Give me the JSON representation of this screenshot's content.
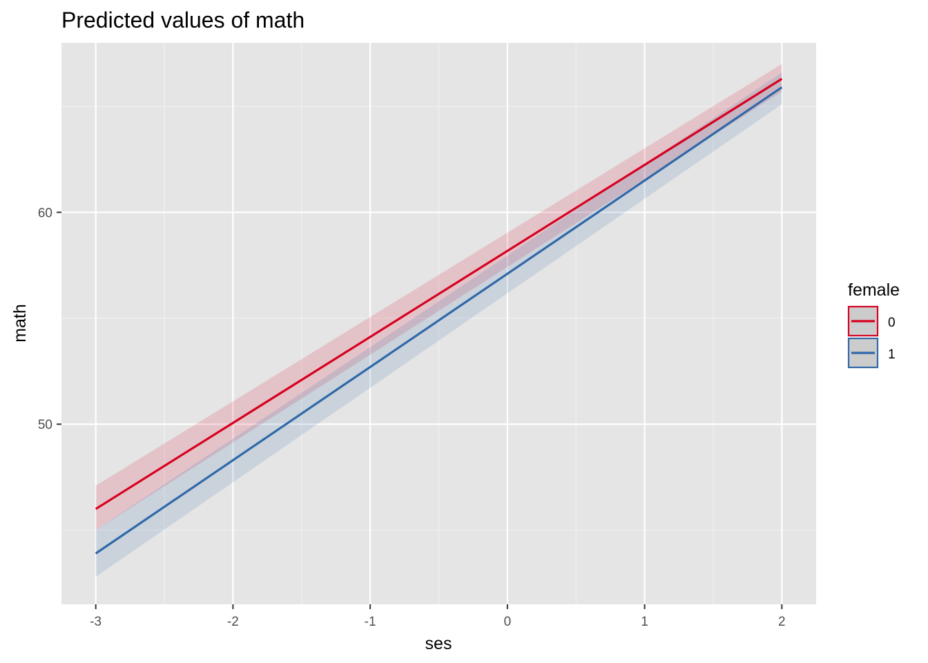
{
  "chart_data": {
    "type": "line",
    "title": "Predicted values of math",
    "xlabel": "ses",
    "ylabel": "math",
    "xlim": [
      -3.25,
      2.25
    ],
    "ylim": [
      41.5,
      68.0
    ],
    "x_ticks": [
      -3,
      -2,
      -1,
      0,
      1,
      2
    ],
    "x_tick_labels": [
      "-3",
      "-2",
      "-1",
      "0",
      "1",
      "2"
    ],
    "y_ticks": [
      50,
      60
    ],
    "y_tick_labels": [
      "50",
      "60"
    ],
    "y_minor_ticks": [
      45,
      55,
      65
    ],
    "grid": true,
    "confidence_bands": true,
    "legend": {
      "title": "female",
      "position": "right"
    },
    "series": [
      {
        "name": "0",
        "color": "#d7001f",
        "x": [
          -3,
          2
        ],
        "y": [
          46.0,
          66.3
        ],
        "ci_low": [
          45.0,
          65.7
        ],
        "ci_high": [
          47.1,
          67.0
        ]
      },
      {
        "name": "1",
        "color": "#2f68a8",
        "x": [
          -3,
          2
        ],
        "y": [
          43.9,
          65.9
        ],
        "ci_low": [
          42.8,
          65.1
        ],
        "ci_high": [
          45.0,
          66.6
        ]
      }
    ]
  }
}
